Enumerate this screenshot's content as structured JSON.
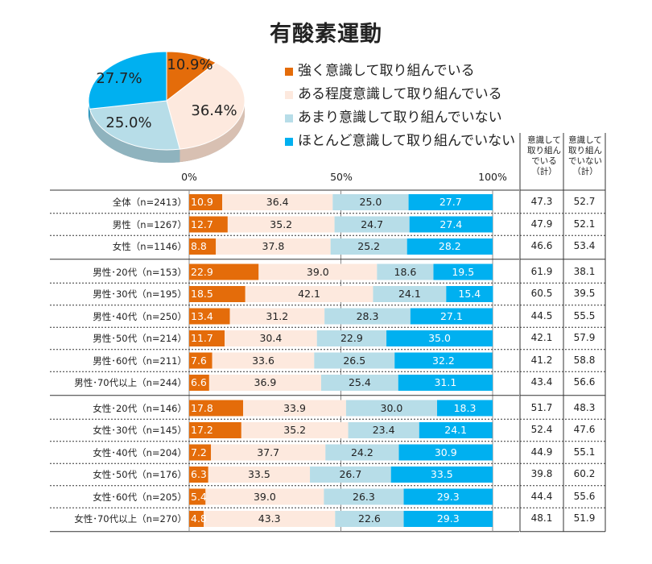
{
  "chart_data": {
    "title": "有酸素運動",
    "type": "bar",
    "stacked": true,
    "orientation": "horizontal",
    "series": [
      {
        "name": "強く意識して取り組んでいる",
        "color": "#E46C0A",
        "values": [
          10.9,
          12.7,
          8.8,
          22.9,
          18.5,
          13.4,
          11.7,
          7.6,
          6.6,
          17.8,
          17.2,
          7.2,
          6.3,
          5.4,
          4.8
        ]
      },
      {
        "name": "ある程度意識して取り組んでいる",
        "color": "#FDE9DE",
        "values": [
          36.4,
          35.2,
          37.8,
          39.0,
          42.1,
          31.2,
          30.4,
          33.6,
          36.9,
          33.9,
          35.2,
          37.7,
          33.5,
          39.0,
          43.3
        ]
      },
      {
        "name": "あまり意識して取り組んでいない",
        "color": "#B7DDE8",
        "values": [
          25.0,
          24.7,
          25.2,
          18.6,
          24.1,
          28.3,
          22.9,
          26.5,
          25.4,
          30.0,
          23.4,
          24.2,
          26.7,
          26.3,
          22.6
        ]
      },
      {
        "name": "ほとんど意識して取り組んでいない",
        "color": "#00B0F0",
        "values": [
          27.7,
          27.4,
          28.2,
          19.5,
          15.4,
          27.1,
          35.0,
          32.2,
          31.1,
          18.3,
          24.1,
          30.9,
          33.5,
          29.3,
          29.3
        ]
      }
    ],
    "categories": [
      "全体（n=2413）",
      "男性（n=1267）",
      "女性（n=1146）",
      "男性･20代（n=153）",
      "男性･30代（n=195）",
      "男性･40代（n=250）",
      "男性･50代（n=214）",
      "男性･60代（n=211）",
      "男性･70代以上（n=244）",
      "女性･20代（n=146）",
      "女性･30代（n=145）",
      "女性･40代（n=204）",
      "女性･50代（n=176）",
      "女性･60代（n=205）",
      "女性･70代以上（n=270）"
    ],
    "xticks": [
      "0%",
      "50%",
      "100%"
    ],
    "xlim": [
      0,
      100
    ],
    "summary_columns": [
      {
        "header": [
          "意識して",
          "取り組ん",
          "でいる",
          "（計）"
        ],
        "values": [
          "47.3",
          "47.9",
          "46.6",
          "61.9",
          "60.5",
          "44.5",
          "42.1",
          "41.2",
          "43.4",
          "51.7",
          "52.4",
          "44.9",
          "39.8",
          "44.4",
          "48.1"
        ]
      },
      {
        "header": [
          "意識して",
          "取り組ん",
          "でいない",
          "（計）"
        ],
        "values": [
          "52.7",
          "52.1",
          "53.4",
          "38.1",
          "39.5",
          "55.5",
          "57.9",
          "58.8",
          "56.6",
          "48.3",
          "47.6",
          "55.1",
          "60.2",
          "55.6",
          "51.9"
        ]
      }
    ],
    "pie": {
      "values": [
        10.9,
        36.4,
        25.0,
        27.7
      ],
      "labels": [
        "10.9%",
        "36.4%",
        "25.0%",
        "27.7%"
      ]
    }
  }
}
